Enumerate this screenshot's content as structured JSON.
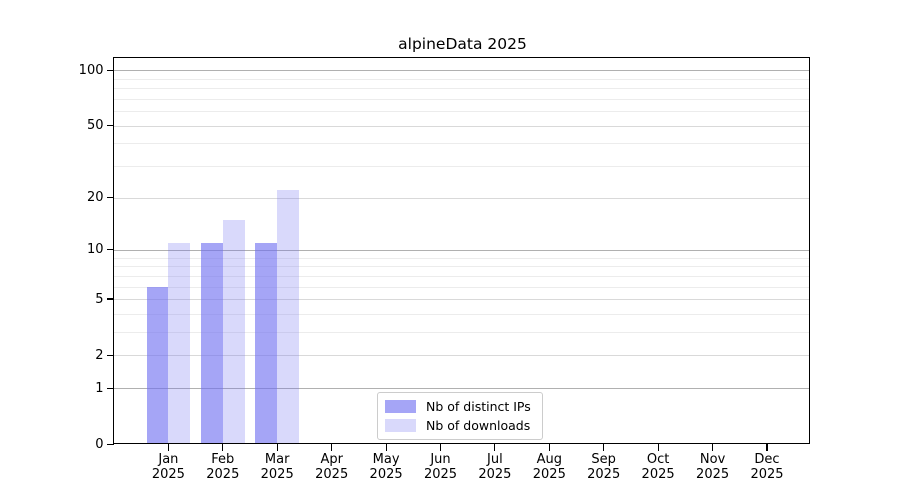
{
  "chart_data": {
    "type": "bar",
    "title": "alpineData 2025",
    "categories": [
      "Jan",
      "Feb",
      "Mar",
      "Apr",
      "May",
      "Jun",
      "Jul",
      "Aug",
      "Sep",
      "Oct",
      "Nov",
      "Dec"
    ],
    "x_year_label": "2025",
    "series": [
      {
        "name": "Nb of distinct IPs",
        "values": [
          6,
          11,
          11,
          0,
          0,
          0,
          0,
          0,
          0,
          0,
          0,
          0
        ],
        "color": "rgba(110,110,240,0.62)",
        "color_flat": "#a5a5f5"
      },
      {
        "name": "Nb of downloads",
        "values": [
          11,
          15,
          22,
          0,
          0,
          0,
          0,
          0,
          0,
          0,
          0,
          0
        ],
        "color": "rgba(110,110,240,0.26)",
        "color_flat": "#d9d9fb"
      }
    ],
    "yscale": "log1p",
    "ylim": [
      0,
      117
    ],
    "y_ticks": [
      100,
      50,
      20,
      10,
      5,
      2,
      1,
      0
    ],
    "y_gridlines_major": [
      100,
      10,
      1
    ],
    "y_gridlines_mid": [
      50,
      20,
      5,
      2
    ],
    "y_gridlines_minor": [
      90,
      80,
      70,
      60,
      40,
      30,
      9,
      8,
      7,
      6,
      4,
      3
    ],
    "grid": true,
    "legend_position": "lower center",
    "colors": {
      "grid_major": "#b0b0b0",
      "grid_mid": "#d9d9d9",
      "grid_minor": "#ececec",
      "spine": "#000000",
      "text": "#000000",
      "legend_border": "#cccccc"
    }
  }
}
